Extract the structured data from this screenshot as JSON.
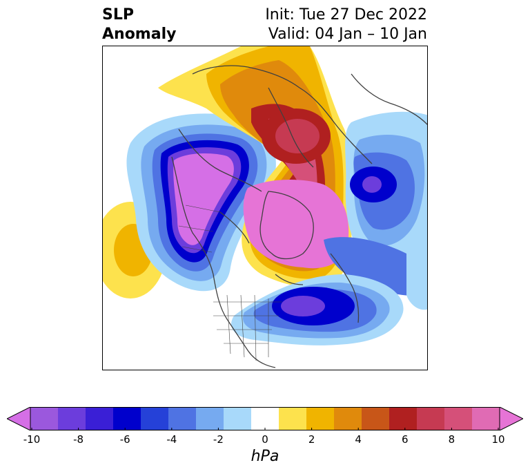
{
  "header": {
    "title_line1": "SLP",
    "title_line2": "Anomaly",
    "init_text": "Init: Tue 27 Dec 2022",
    "valid_text": "Valid: 04 Jan – 10 Jan"
  },
  "colorbar": {
    "unit": "hPa",
    "ticks": [
      "-10",
      "-8",
      "-6",
      "-4",
      "-2",
      "0",
      "2",
      "4",
      "6",
      "8",
      "10"
    ],
    "colors": [
      "#d56fe6",
      "#9b58dd",
      "#6c3ddc",
      "#3a1fd6",
      "#0000cc",
      "#2541d8",
      "#4f73e3",
      "#76aaf0",
      "#a8d9fa",
      "#ffffff",
      "#fde24d",
      "#f0b400",
      "#e08a0c",
      "#c85618",
      "#b02020",
      "#c63a52",
      "#d55079",
      "#e06bb4",
      "#e674d6"
    ]
  },
  "map": {
    "colors": {
      "neg_light": "#a8d9fa",
      "neg_1": "#76aaf0",
      "neg_2": "#4f73e3",
      "neg_3": "#2541d8",
      "neg_4": "#0000cc",
      "neg_5": "#3a1fd6",
      "neg_6": "#6c3ddc",
      "neg_7": "#9b58dd",
      "neg_8": "#d56fe6",
      "pos_1": "#fde24d",
      "pos_2": "#f0b400",
      "pos_3": "#e08a0c",
      "pos_4": "#c85618",
      "pos_5": "#b02020",
      "pos_6": "#c63a52",
      "pos_7": "#d55079",
      "pos_8": "#e06bb4",
      "pos_9": "#e674d6",
      "coast": "#404040"
    }
  }
}
